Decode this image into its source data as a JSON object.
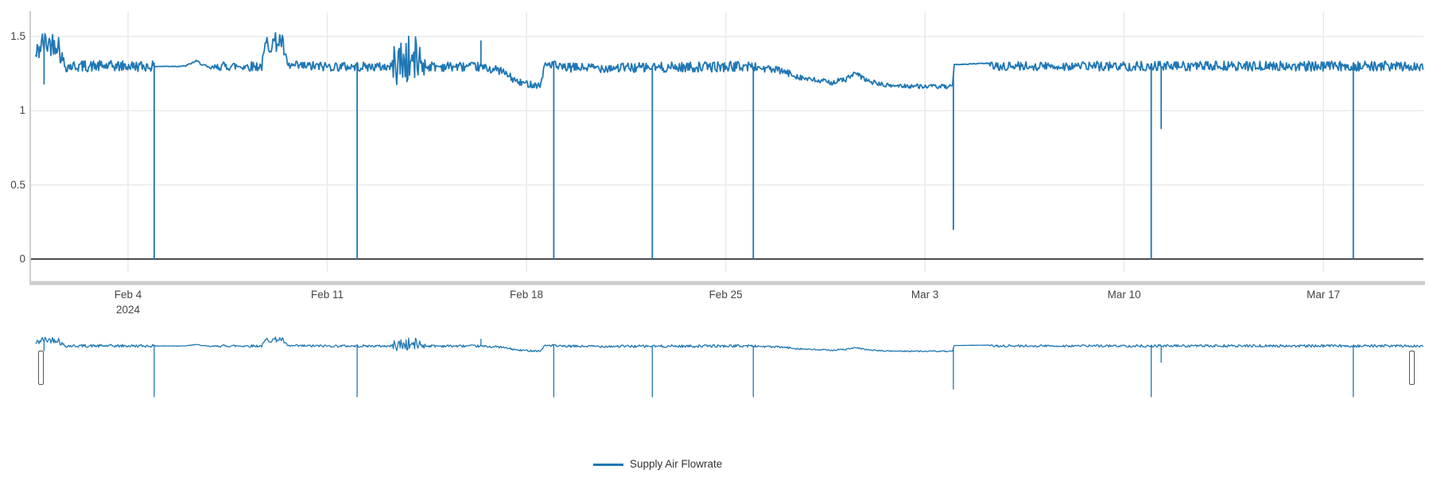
{
  "chart_data": {
    "type": "line",
    "title": "",
    "legend": {
      "position": "bottom-center",
      "entries": [
        {
          "label": "Supply Air Flowrate",
          "color": "#1f77b4"
        }
      ]
    },
    "x_axis": {
      "label": "",
      "unit": "days since 2024-01-31 (day 4 = Feb 4, 2024)",
      "range": [
        0.75,
        49.5
      ],
      "ticks": [
        {
          "day": 4,
          "label": "Feb 4",
          "sublabel": "2024"
        },
        {
          "day": 11,
          "label": "Feb 11"
        },
        {
          "day": 18,
          "label": "Feb 18"
        },
        {
          "day": 25,
          "label": "Feb 25"
        },
        {
          "day": 32,
          "label": "Mar 3"
        },
        {
          "day": 39,
          "label": "Mar 10"
        },
        {
          "day": 46,
          "label": "Mar 17"
        }
      ]
    },
    "y_axis": {
      "label": "",
      "range": [
        0,
        1.69
      ],
      "ticks": [
        {
          "value": 0,
          "label": "0"
        },
        {
          "value": 0.5,
          "label": "0.5"
        },
        {
          "value": 1,
          "label": "1"
        },
        {
          "value": 1.5,
          "label": "1.5"
        }
      ]
    },
    "grid": true,
    "rangeslider": {
      "visible": true,
      "selected_range": "full"
    },
    "series": [
      {
        "name": "Supply Air Flowrate",
        "color": "#1f77b4",
        "baseline": 1.3,
        "description": "Noisy flow signal ~1.3 with periodic dropouts to 0; piecewise segments given as [day, base_value, noise_amplitude] and momentary excursions as [day, value].",
        "control_points": [
          [
            0.75,
            1.36,
            0.08
          ],
          [
            0.95,
            1.45,
            0.09
          ],
          [
            1.55,
            1.46,
            0.08
          ],
          [
            1.62,
            1.38,
            0.06
          ],
          [
            1.8,
            1.3,
            0.04
          ],
          [
            4.9,
            1.3,
            0.035
          ],
          [
            4.95,
            1.298,
            0.002
          ],
          [
            6.0,
            1.3,
            0.004
          ],
          [
            6.4,
            1.335,
            0.006
          ],
          [
            6.85,
            1.285,
            0.012
          ],
          [
            7.3,
            1.3,
            0.03
          ],
          [
            8.7,
            1.3,
            0.035
          ],
          [
            8.85,
            1.45,
            0.07
          ],
          [
            9.4,
            1.47,
            0.065
          ],
          [
            9.6,
            1.3,
            0.035
          ],
          [
            13.25,
            1.295,
            0.03
          ],
          [
            13.4,
            1.33,
            0.17
          ],
          [
            14.3,
            1.34,
            0.165
          ],
          [
            14.45,
            1.3,
            0.035
          ],
          [
            16.3,
            1.295,
            0.03
          ],
          [
            17.1,
            1.27,
            0.028
          ],
          [
            17.7,
            1.19,
            0.025
          ],
          [
            18.5,
            1.17,
            0.022
          ],
          [
            18.62,
            1.3,
            0.025
          ],
          [
            18.85,
            1.32,
            0.04
          ],
          [
            19.1,
            1.29,
            0.03
          ],
          [
            22.3,
            1.29,
            0.035
          ],
          [
            25.9,
            1.3,
            0.035
          ],
          [
            26.15,
            1.29,
            0.03
          ],
          [
            26.9,
            1.27,
            0.025
          ],
          [
            27.9,
            1.21,
            0.02
          ],
          [
            28.7,
            1.19,
            0.018
          ],
          [
            29.2,
            1.21,
            0.02
          ],
          [
            29.55,
            1.25,
            0.018
          ],
          [
            30.0,
            1.2,
            0.016
          ],
          [
            30.6,
            1.17,
            0.015
          ],
          [
            32.97,
            1.16,
            0.015
          ],
          [
            33.03,
            1.31,
            0.002
          ],
          [
            34.2,
            1.32,
            0.003
          ],
          [
            34.35,
            1.3,
            0.03
          ],
          [
            39.9,
            1.3,
            0.033
          ],
          [
            40.45,
            1.3,
            0.033
          ],
          [
            49.5,
            1.3,
            0.034
          ]
        ],
        "spikes": [
          [
            1.05,
            1.18
          ],
          [
            4.92,
            0
          ],
          [
            12.05,
            0
          ],
          [
            16.4,
            1.47
          ],
          [
            18.96,
            0
          ],
          [
            22.42,
            0
          ],
          [
            25.97,
            0
          ],
          [
            33.0,
            0.2
          ],
          [
            39.95,
            0
          ],
          [
            40.3,
            0.88
          ],
          [
            47.05,
            0
          ]
        ]
      }
    ]
  },
  "colors": {
    "line": "#1f77b4",
    "grid": "#e9e9e9",
    "zero_line": "#3f3f3f",
    "axis_spine": "#cdcdcd",
    "tick_text": "#444444",
    "legend_text": "#333333",
    "handle_border": "#555555",
    "background": "#ffffff"
  }
}
